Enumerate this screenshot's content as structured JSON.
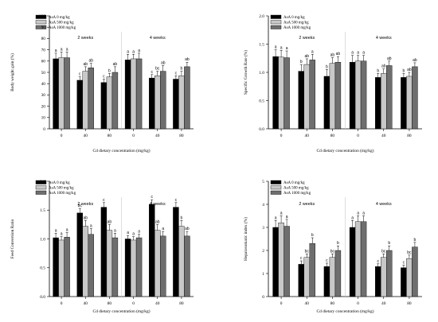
{
  "legend": [
    {
      "label": "AsA      0 mg/kg",
      "color": "#000000"
    },
    {
      "label": "AsA   500 mg/kg",
      "color": "#c8c8c8"
    },
    {
      "label": "AsA 1000 mg/kg",
      "color": "#6e6e6e"
    }
  ],
  "colors": {
    "series_0": "#000000",
    "series_500": "#c8c8c8",
    "series_1000": "#6e6e6e",
    "axis": "#000000",
    "divider": "#c8c8c8"
  },
  "chart_data": [
    {
      "type": "bar",
      "ylabel": "Body weight gain (%)",
      "xlabel": "Cd dietary concentration (mg/kg)",
      "groups": [
        "2 weeks",
        "4 weeks"
      ],
      "categories": [
        "0",
        "40",
        "80"
      ],
      "ylim": [
        0,
        100
      ],
      "yticks": [
        "0",
        "10",
        "20",
        "30",
        "40",
        "50",
        "60",
        "70",
        "80",
        "90",
        "100"
      ],
      "series": [
        {
          "name": "AsA      0 mg/kg",
          "values": [
            [
              62,
              43,
              41
            ],
            [
              61,
              45,
              44
            ]
          ],
          "errors": [
            [
              5,
              3,
              3
            ],
            [
              5,
              3,
              3
            ]
          ],
          "labels": [
            [
              "a",
              "c",
              "c"
            ],
            [
              "a",
              "c",
              "c"
            ]
          ]
        },
        {
          "name": "AsA   500 mg/kg",
          "values": [
            [
              63,
              51,
              46
            ],
            [
              62,
              47,
              47
            ]
          ],
          "errors": [
            [
              5,
              4,
              3
            ],
            [
              4,
              4,
              4
            ]
          ],
          "labels": [
            [
              "a",
              "ab",
              "b"
            ],
            [
              "a",
              "bc",
              "b"
            ]
          ]
        },
        {
          "name": "AsA 1000 mg/kg",
          "values": [
            [
              63,
              54,
              50
            ],
            [
              62,
              51,
              55
            ]
          ],
          "errors": [
            [
              5,
              4,
              5
            ],
            [
              5,
              5,
              4
            ]
          ],
          "labels": [
            [
              "a",
              "ab",
              "ab"
            ],
            [
              "a",
              "ab",
              "ab"
            ]
          ]
        }
      ]
    },
    {
      "type": "bar",
      "ylabel": "Specific Growth Rate (%)",
      "xlabel": "Cd dietary concentration (mg/kg)",
      "groups": [
        "2 weeks",
        "4 weeks"
      ],
      "categories": [
        "0",
        "40",
        "80"
      ],
      "ylim": [
        0,
        2.0
      ],
      "yticks": [
        "0.0",
        "0.5",
        "1.0",
        "1.5",
        "2.0"
      ],
      "series": [
        {
          "name": "AsA      0 mg/kg",
          "values": [
            [
              1.28,
              1.02,
              0.93
            ],
            [
              1.18,
              0.91,
              0.91
            ]
          ],
          "errors": [
            [
              0.12,
              0.12,
              0.12
            ],
            [
              0.12,
              0.07,
              0.07
            ]
          ],
          "labels": [
            [
              "a",
              "b",
              "b"
            ],
            [
              "a",
              "b",
              "b"
            ]
          ]
        },
        {
          "name": "AsA   500 mg/kg",
          "values": [
            [
              1.27,
              1.14,
              1.16
            ],
            [
              1.2,
              0.98,
              0.93
            ]
          ],
          "errors": [
            [
              0.12,
              0.1,
              0.1
            ],
            [
              0.1,
              0.08,
              0.07
            ]
          ],
          "labels": [
            [
              "a",
              "ab",
              "ab"
            ],
            [
              "a",
              "ab",
              "ab"
            ]
          ]
        },
        {
          "name": "AsA 1000 mg/kg",
          "values": [
            [
              1.26,
              1.22,
              1.18
            ],
            [
              1.2,
              1.12,
              1.1
            ]
          ],
          "errors": [
            [
              0.12,
              0.1,
              0.1
            ],
            [
              0.1,
              0.08,
              0.07
            ]
          ],
          "labels": [
            [
              "a",
              "a",
              "ab"
            ],
            [
              "a",
              "ab",
              "ab"
            ]
          ]
        }
      ]
    },
    {
      "type": "bar",
      "ylabel": "Feed Conversion Ratio",
      "xlabel": "Cd dietary concentration (mg/kg)",
      "groups": [
        "2 weeks",
        "4 weeks"
      ],
      "categories": [
        "0",
        "40",
        "80"
      ],
      "ylim": [
        0,
        2.0
      ],
      "yticks": [
        "0.0",
        "0.5",
        "1.0",
        "1.5",
        "2.0"
      ],
      "series": [
        {
          "name": "AsA      0 mg/kg",
          "values": [
            [
              1.02,
              1.45,
              1.55
            ],
            [
              1.0,
              1.6,
              1.55
            ]
          ],
          "errors": [
            [
              0.08,
              0.08,
              0.08
            ],
            [
              0.06,
              0.08,
              0.08
            ]
          ],
          "labels": [
            [
              "a",
              "bc",
              "c"
            ],
            [
              "a",
              "c",
              "c"
            ]
          ]
        },
        {
          "name": "AsA   500 mg/kg",
          "values": [
            [
              0.98,
              1.22,
              1.15
            ],
            [
              0.98,
              1.15,
              1.22
            ]
          ],
          "errors": [
            [
              0.06,
              0.1,
              0.1
            ],
            [
              0.06,
              0.1,
              0.1
            ]
          ],
          "labels": [
            [
              "a",
              "ab",
              "ab"
            ],
            [
              "a",
              "ab",
              "b"
            ]
          ]
        },
        {
          "name": "AsA 1000 mg/kg",
          "values": [
            [
              1.03,
              1.08,
              1.02
            ],
            [
              1.02,
              1.05,
              1.05
            ]
          ],
          "errors": [
            [
              0.08,
              0.1,
              0.08
            ],
            [
              0.06,
              0.08,
              0.08
            ]
          ],
          "labels": [
            [
              "a",
              "a",
              "a"
            ],
            [
              "a",
              "a",
              "ab"
            ]
          ]
        }
      ]
    },
    {
      "type": "bar",
      "ylabel": "Hepatosomatic index (%)",
      "xlabel": "Cd dietary concentration (mg/kg)",
      "groups": [
        "2 weeks",
        "4 weeks"
      ],
      "categories": [
        "0",
        "40",
        "80"
      ],
      "ylim": [
        0,
        5
      ],
      "yticks": [
        "0",
        "1",
        "2",
        "3",
        "4",
        "5"
      ],
      "series": [
        {
          "name": "AsA      0 mg/kg",
          "values": [
            [
              3.0,
              1.4,
              1.3
            ],
            [
              3.0,
              1.3,
              1.25
            ]
          ],
          "errors": [
            [
              0.3,
              0.15,
              0.15
            ],
            [
              0.3,
              0.12,
              0.12
            ]
          ],
          "labels": [
            [
              "a",
              "c",
              "c"
            ],
            [
              "a",
              "c",
              "c"
            ]
          ]
        },
        {
          "name": "AsA   500 mg/kg",
          "values": [
            [
              3.2,
              1.7,
              1.7
            ],
            [
              3.25,
              1.7,
              1.65
            ]
          ],
          "errors": [
            [
              0.3,
              0.15,
              0.15
            ],
            [
              0.25,
              0.15,
              0.15
            ]
          ],
          "labels": [
            [
              "a",
              "bc",
              "bc"
            ],
            [
              "a",
              "bc",
              "bc"
            ]
          ]
        },
        {
          "name": "AsA 1000 mg/kg",
          "values": [
            [
              3.05,
              2.3,
              2.0
            ],
            [
              3.25,
              2.0,
              2.15
            ]
          ],
          "errors": [
            [
              0.3,
              0.25,
              0.2
            ],
            [
              0.25,
              0.2,
              0.2
            ]
          ],
          "labels": [
            [
              "a",
              "b",
              "b"
            ],
            [
              "a",
              "b",
              "b"
            ]
          ]
        }
      ]
    }
  ]
}
